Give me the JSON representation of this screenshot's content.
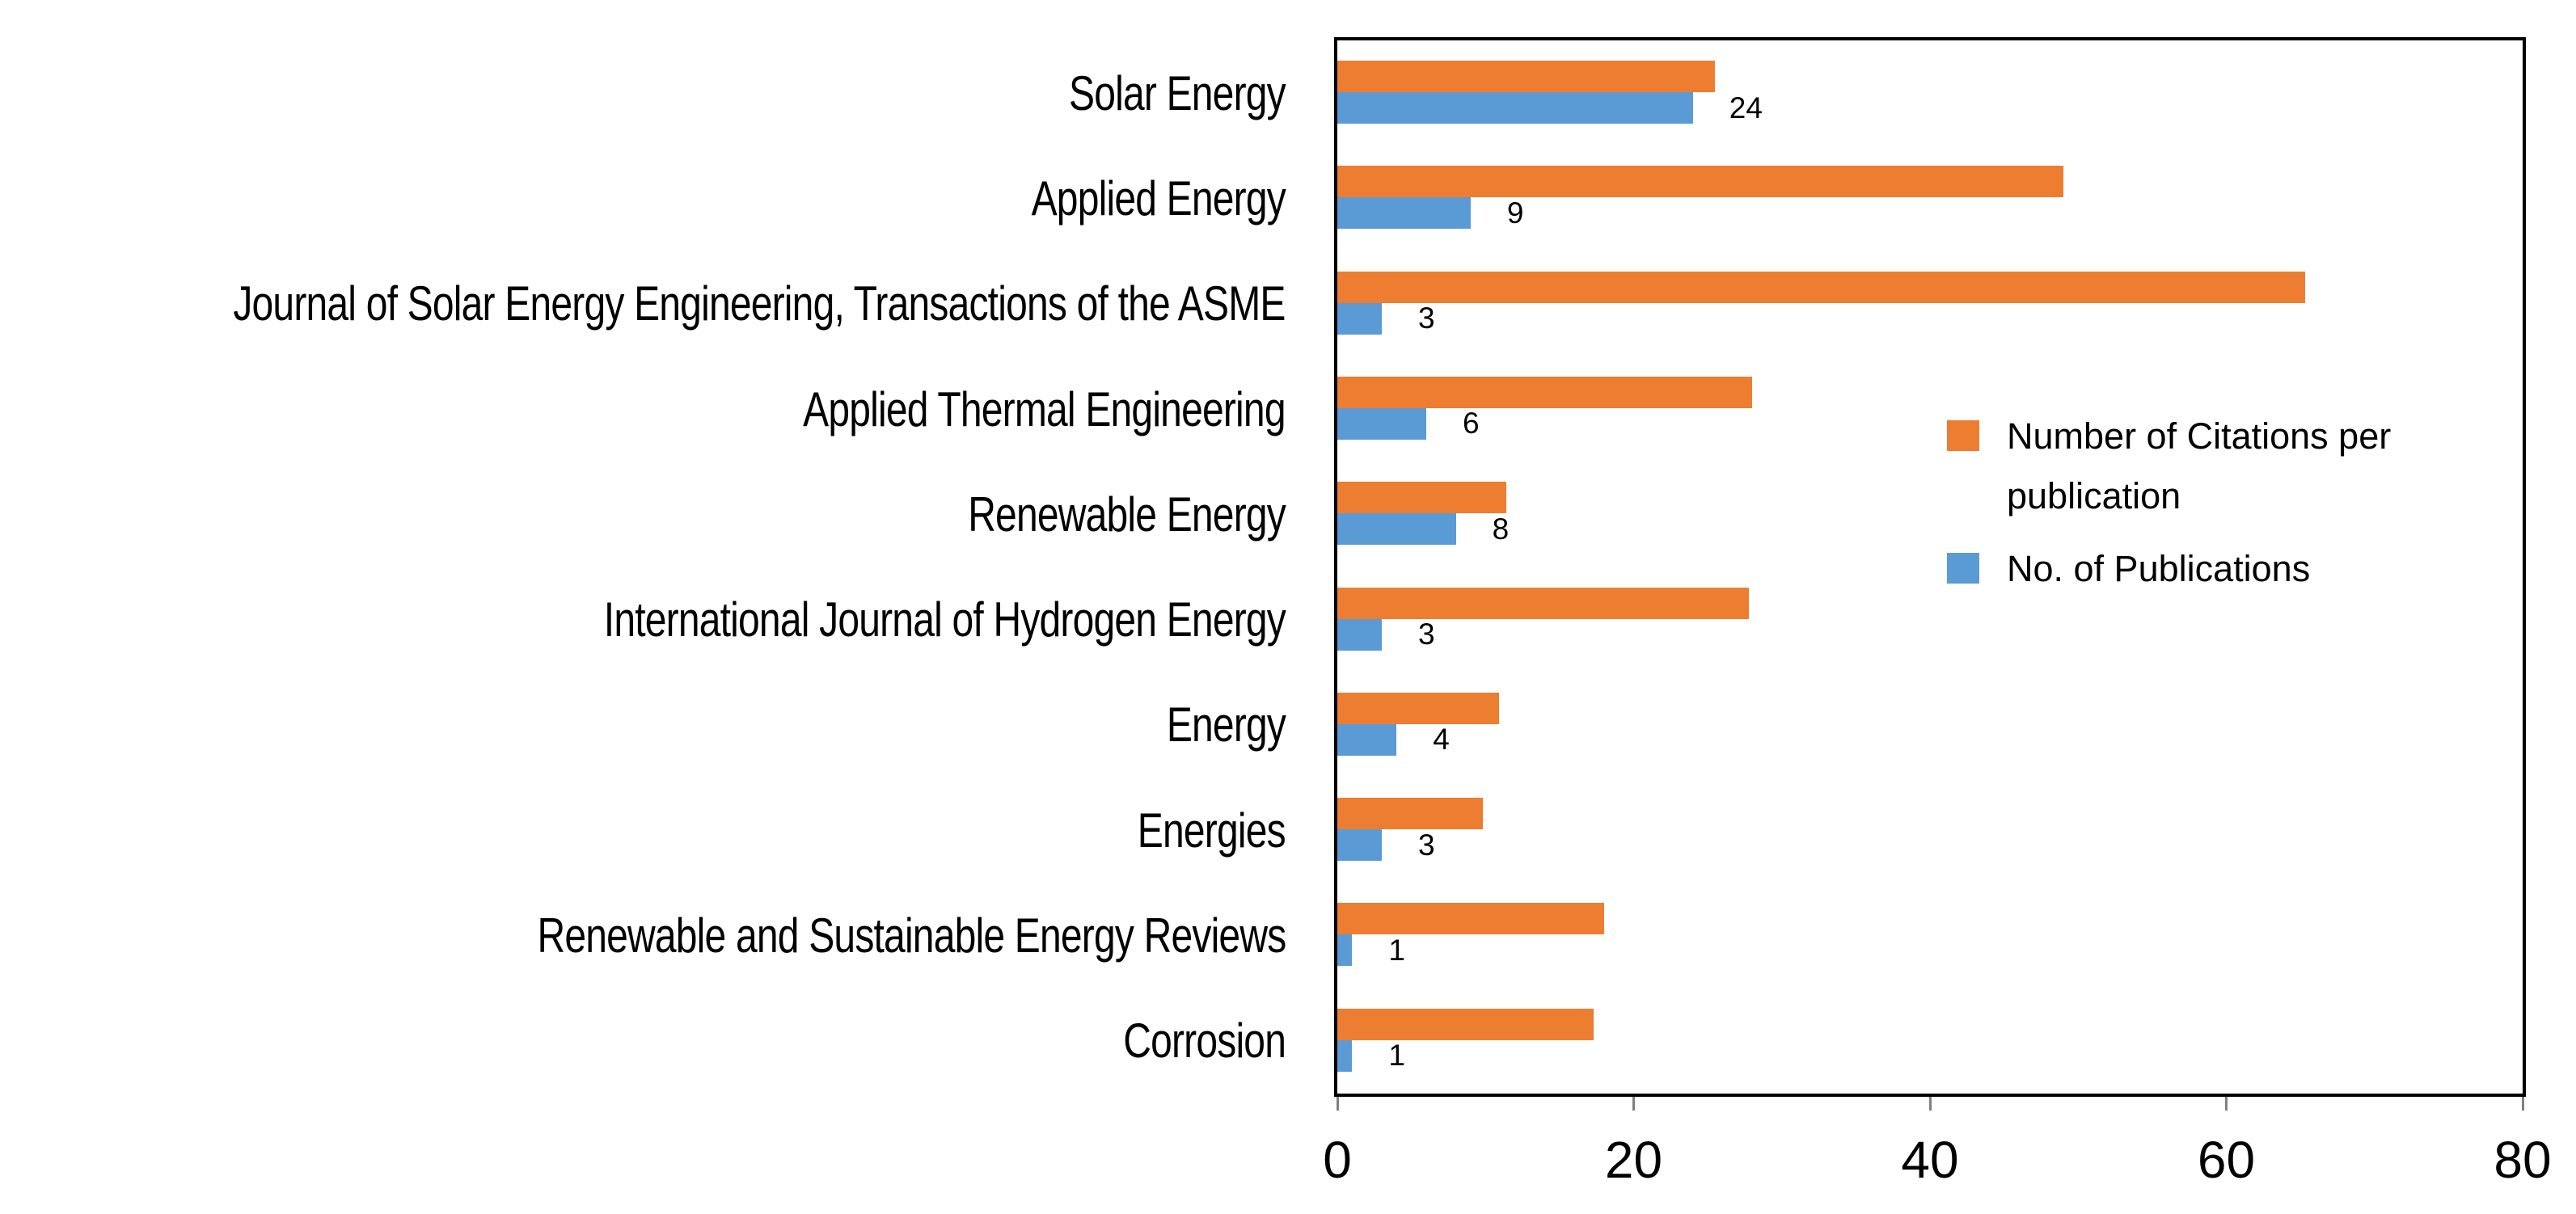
{
  "chart_data": {
    "type": "bar",
    "orientation": "horizontal",
    "title": "",
    "xlabel": "",
    "ylabel": "",
    "categories": [
      "Solar Energy",
      "Applied Energy",
      "Journal of Solar Energy Engineering, Transactions of the ASME",
      "Applied Thermal Engineering",
      "Renewable Energy",
      "International Journal of Hydrogen Energy",
      "Energy",
      "Energies",
      "Renewable and Sustainable Energy Reviews",
      "Corrosion"
    ],
    "series": [
      {
        "name": "Number of Citations per publication",
        "color": "#ED7D31",
        "values": [
          25.5,
          49,
          65.3,
          28,
          11.4,
          27.8,
          10.9,
          9.8,
          18,
          17.3
        ],
        "data_labels": false
      },
      {
        "name": "No. of Publications",
        "color": "#5B9BD5",
        "values": [
          24,
          9,
          3,
          6,
          8,
          3,
          4,
          3,
          1,
          1
        ],
        "data_labels": true,
        "label_texts": [
          "24",
          "9",
          "3",
          "6",
          "8",
          "3",
          "4",
          "3",
          "1",
          "1"
        ]
      }
    ],
    "xlim": [
      0,
      80
    ],
    "x_ticks": [
      0,
      20,
      40,
      60,
      80
    ],
    "x_tick_labels": [
      "0",
      "20",
      "40",
      "60",
      "80"
    ],
    "grid": false,
    "legend_position": "inside-right",
    "plot_border_color": "#000000",
    "tick_color": "#808080",
    "background_color": "#ffffff",
    "text_color": "#000000"
  }
}
